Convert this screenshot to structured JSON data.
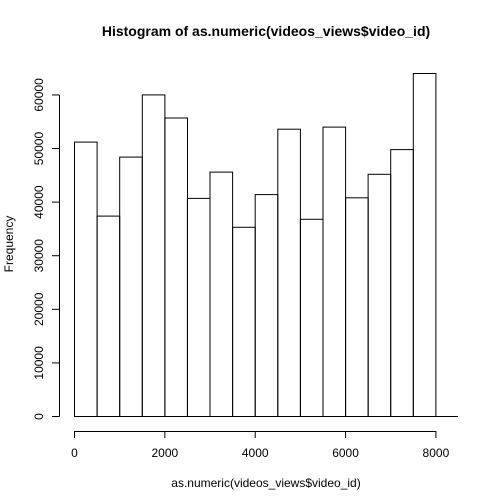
{
  "chart_data": {
    "type": "bar",
    "title": "Histogram of as.numeric(videos_views$video_id)",
    "xlabel": "as.numeric(videos_views$video_id)",
    "ylabel": "Frequency",
    "bin_edges": [
      0,
      500,
      1000,
      1500,
      2000,
      2500,
      3000,
      3500,
      4000,
      4500,
      5000,
      5500,
      6000,
      6500,
      7000,
      7500,
      8000
    ],
    "values": [
      51200,
      37400,
      48400,
      60000,
      55700,
      40700,
      45600,
      35300,
      41400,
      53600,
      36800,
      54000,
      40800,
      45200,
      49800,
      64000
    ],
    "xlim": [
      0,
      8500
    ],
    "ylim": [
      0,
      64000
    ],
    "x_ticks": [
      0,
      2000,
      4000,
      6000,
      8000
    ],
    "x_tick_labels": [
      "0",
      "2000",
      "4000",
      "6000",
      "8000"
    ],
    "y_ticks": [
      0,
      10000,
      20000,
      30000,
      40000,
      50000,
      60000
    ],
    "y_tick_labels": [
      "0",
      "10000",
      "20000",
      "30000",
      "40000",
      "50000",
      "60000"
    ],
    "grid": false,
    "colors": {
      "bar_fill": "#ffffff",
      "bar_stroke": "#000000"
    }
  }
}
